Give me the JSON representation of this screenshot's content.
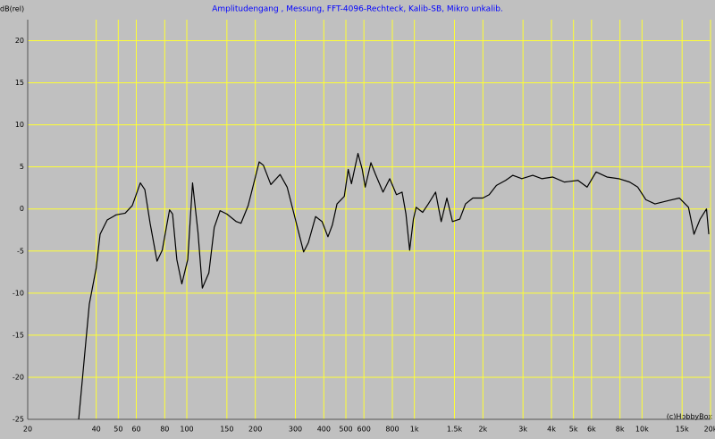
{
  "chart_data": {
    "type": "line",
    "title": "Amplitudengang , Messung, FFT-4096-Rechteck, Kalib-SB, Mikro unkalib.",
    "y_label": "dB(rel)",
    "annotation": "(c)HobbyBox",
    "log_x": true,
    "grid": true,
    "grid_color": "#ffff33",
    "xlim": [
      20,
      20000
    ],
    "ylim": [
      -25,
      22.5
    ],
    "xticks": [
      20,
      40,
      50,
      60,
      80,
      100,
      150,
      200,
      300,
      400,
      500,
      600,
      800,
      {
        "value": 1000,
        "label": "1k"
      },
      {
        "value": 1500,
        "label": "1.5k"
      },
      {
        "value": 2000,
        "label": "2k"
      },
      {
        "value": 3000,
        "label": "3k"
      },
      {
        "value": 4000,
        "label": "4k"
      },
      {
        "value": 5000,
        "label": "5k"
      },
      {
        "value": 6000,
        "label": "6k"
      },
      {
        "value": 8000,
        "label": "8k"
      },
      {
        "value": 10000,
        "label": "10k"
      },
      {
        "value": 15000,
        "label": "15k"
      },
      {
        "value": 20000,
        "label": "20k"
      }
    ],
    "yticks": [
      20,
      15,
      10,
      5,
      0,
      -5,
      -10,
      -15,
      -20,
      -25
    ],
    "x": [
      33.5,
      37.3,
      40,
      41.6,
      44.7,
      48.9,
      53.6,
      57.6,
      62.5,
      65.4,
      69,
      74,
      78,
      84,
      86.6,
      90.4,
      95.1,
      101,
      106,
      112,
      117,
      125,
      132,
      140,
      150,
      165,
      173,
      186,
      208,
      217,
      234,
      257,
      276,
      303,
      326,
      342,
      368,
      393,
      417,
      436,
      457,
      492,
      512,
      529,
      565,
      590,
      608,
      644,
      675,
      728,
      779,
      834,
      883,
      918,
      953,
      990,
      1018,
      1087,
      1151,
      1239,
      1311,
      1389,
      1470,
      1583,
      1677,
      1806,
      1997,
      2131,
      2292,
      2516,
      2704,
      2965,
      3311,
      3627,
      4048,
      4560,
      5232,
      5736,
      6285,
      7015,
      7903,
      8822,
      9577,
      10400,
      11400,
      13080,
      14600,
      16000,
      16920,
      18000,
      19200,
      19650
    ],
    "series": [
      {
        "color": "#000000",
        "values": [
          -25,
          -11.3,
          -7,
          -3,
          -1.3,
          -0.7,
          -0.5,
          0.4,
          3.1,
          2.3,
          -1.7,
          -6.2,
          -4.9,
          -0.1,
          -0.6,
          -6,
          -8.9,
          -6,
          3.1,
          -2.8,
          -9.4,
          -7.6,
          -2.2,
          -0.2,
          -0.6,
          -1.5,
          -1.7,
          0.4,
          5.6,
          5.2,
          2.9,
          4.1,
          2.6,
          -1.7,
          -5.1,
          -4,
          -0.9,
          -1.5,
          -3.3,
          -1.9,
          0.6,
          1.5,
          4.7,
          3,
          6.6,
          4.7,
          2.6,
          5.5,
          4.1,
          2,
          3.6,
          1.7,
          2,
          -0.6,
          -4.9,
          -1.2,
          0.2,
          -0.4,
          0.6,
          2,
          -1.5,
          1.3,
          -1.5,
          -1.2,
          0.6,
          1.3,
          1.3,
          1.7,
          2.8,
          3.4,
          4,
          3.6,
          4,
          3.6,
          3.8,
          3.2,
          3.4,
          2.6,
          4.4,
          3.8,
          3.6,
          3.2,
          2.6,
          1.1,
          0.6,
          1,
          1.3,
          0.2,
          -3,
          -1.2,
          0,
          -3
        ]
      }
    ]
  }
}
